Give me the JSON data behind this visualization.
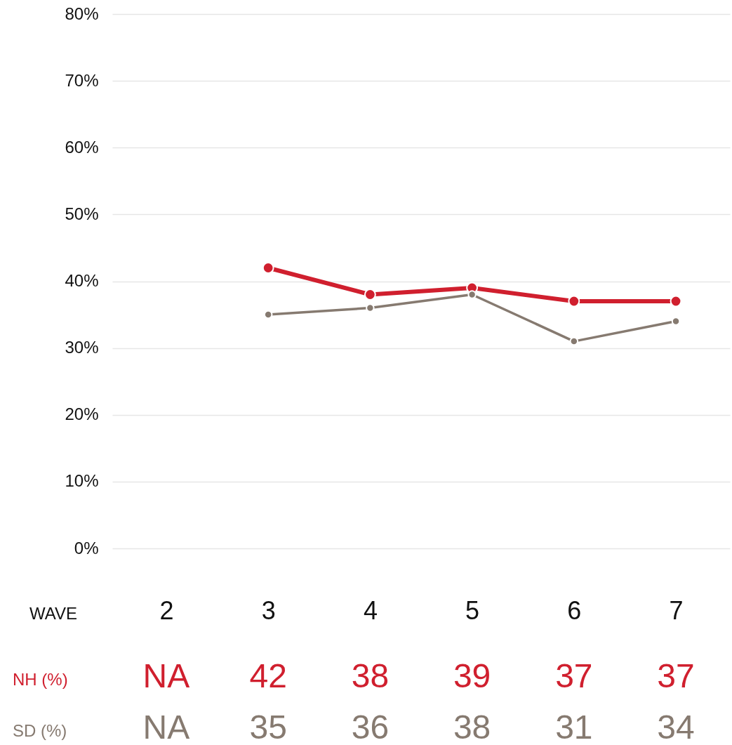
{
  "chart_data": {
    "type": "line",
    "xlabel": "WAVE",
    "categories": [
      "2",
      "3",
      "4",
      "5",
      "6",
      "7"
    ],
    "series": [
      {
        "name": "NH (%)",
        "color": "#d01f2e",
        "values": [
          null,
          42,
          38,
          39,
          37,
          37
        ],
        "value_labels": [
          "NA",
          "42",
          "38",
          "39",
          "37",
          "37"
        ]
      },
      {
        "name": "SD (%)",
        "color": "#867a70",
        "values": [
          null,
          35,
          36,
          38,
          31,
          34
        ],
        "value_labels": [
          "NA",
          "35",
          "36",
          "38",
          "31",
          "34"
        ]
      }
    ],
    "ylim": [
      0,
      80
    ],
    "yticks": [
      {
        "value": 0,
        "label": "0%"
      },
      {
        "value": 10,
        "label": "10%"
      },
      {
        "value": 20,
        "label": "20%"
      },
      {
        "value": 30,
        "label": "30%"
      },
      {
        "value": 40,
        "label": "40%"
      },
      {
        "value": 50,
        "label": "50%"
      },
      {
        "value": 60,
        "label": "60%"
      },
      {
        "value": 70,
        "label": "70%"
      },
      {
        "value": 80,
        "label": "80%"
      }
    ],
    "grid": "y",
    "marker": "circle"
  }
}
